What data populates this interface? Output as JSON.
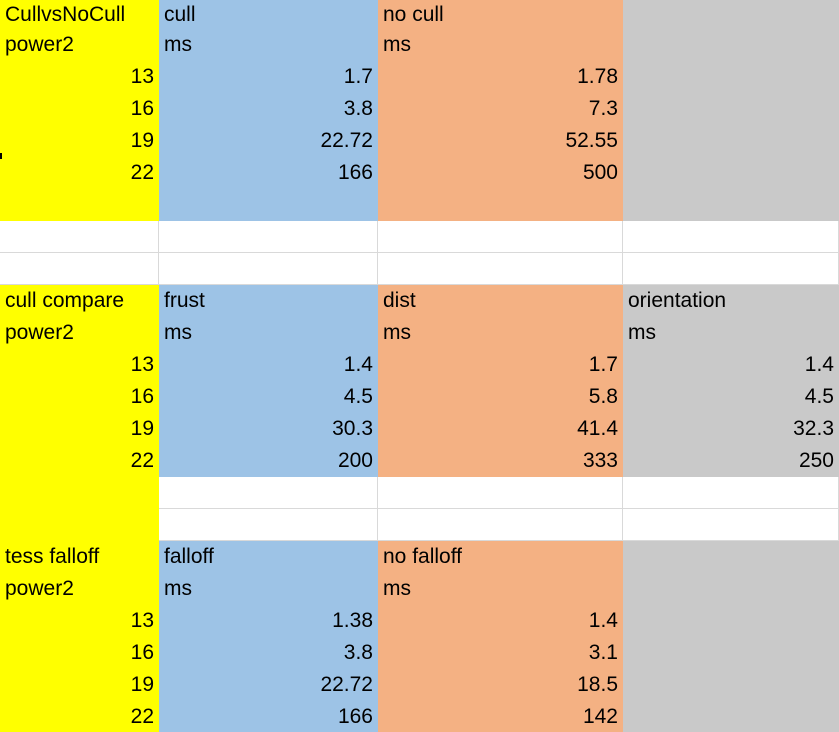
{
  "colors": {
    "yellow": "#ffff00",
    "blue": "#9dc3e6",
    "orange": "#f4b183",
    "gray": "#c9c9c9",
    "white": "#ffffff",
    "gridline": "#d9d9d9"
  },
  "sheet": {
    "rows": [
      {
        "cells": [
          {
            "text": "CullvsNoCull",
            "align": "left",
            "fill": "yellow"
          },
          {
            "text": "cull",
            "align": "left",
            "fill": "blue"
          },
          {
            "text": "no cull",
            "align": "left",
            "fill": "orange"
          },
          {
            "text": "",
            "align": "left",
            "fill": "gray"
          }
        ]
      },
      {
        "cells": [
          {
            "text": "power2",
            "align": "left",
            "fill": "yellow"
          },
          {
            "text": "ms",
            "align": "left",
            "fill": "blue"
          },
          {
            "text": "ms",
            "align": "left",
            "fill": "orange"
          },
          {
            "text": "",
            "align": "left",
            "fill": "gray"
          }
        ]
      },
      {
        "cells": [
          {
            "text": "13",
            "align": "right",
            "fill": "yellow"
          },
          {
            "text": "1.7",
            "align": "right",
            "fill": "blue"
          },
          {
            "text": "1.78",
            "align": "right",
            "fill": "orange"
          },
          {
            "text": "",
            "align": "right",
            "fill": "gray"
          }
        ]
      },
      {
        "cells": [
          {
            "text": "16",
            "align": "right",
            "fill": "yellow"
          },
          {
            "text": "3.8",
            "align": "right",
            "fill": "blue"
          },
          {
            "text": "7.3",
            "align": "right",
            "fill": "orange"
          },
          {
            "text": "",
            "align": "right",
            "fill": "gray"
          }
        ]
      },
      {
        "cells": [
          {
            "text": "19",
            "align": "right",
            "fill": "yellow"
          },
          {
            "text": "22.72",
            "align": "right",
            "fill": "blue"
          },
          {
            "text": "52.55",
            "align": "right",
            "fill": "orange"
          },
          {
            "text": "",
            "align": "right",
            "fill": "gray"
          }
        ]
      },
      {
        "cells": [
          {
            "text": "22",
            "align": "right",
            "fill": "yellow"
          },
          {
            "text": "166",
            "align": "right",
            "fill": "blue"
          },
          {
            "text": "500",
            "align": "right",
            "fill": "orange"
          },
          {
            "text": "",
            "align": "right",
            "fill": "gray"
          }
        ]
      },
      {
        "cells": [
          {
            "text": "",
            "align": "left",
            "fill": "yellow"
          },
          {
            "text": "",
            "align": "left",
            "fill": "blue"
          },
          {
            "text": "",
            "align": "left",
            "fill": "orange"
          },
          {
            "text": "",
            "align": "left",
            "fill": "gray"
          }
        ]
      },
      {
        "cells": [
          {
            "text": "",
            "align": "left",
            "fill": "white"
          },
          {
            "text": "",
            "align": "left",
            "fill": "white"
          },
          {
            "text": "",
            "align": "left",
            "fill": "white"
          },
          {
            "text": "",
            "align": "left",
            "fill": "white"
          }
        ]
      },
      {
        "cells": [
          {
            "text": "",
            "align": "left",
            "fill": "white"
          },
          {
            "text": "",
            "align": "left",
            "fill": "white"
          },
          {
            "text": "",
            "align": "left",
            "fill": "white"
          },
          {
            "text": "",
            "align": "left",
            "fill": "white"
          }
        ]
      },
      {
        "cells": [
          {
            "text": "cull compare",
            "align": "left",
            "fill": "yellow"
          },
          {
            "text": "frust",
            "align": "left",
            "fill": "blue"
          },
          {
            "text": "dist",
            "align": "left",
            "fill": "orange"
          },
          {
            "text": "orientation",
            "align": "left",
            "fill": "gray"
          }
        ]
      },
      {
        "cells": [
          {
            "text": "power2",
            "align": "left",
            "fill": "yellow"
          },
          {
            "text": "ms",
            "align": "left",
            "fill": "blue"
          },
          {
            "text": "ms",
            "align": "left",
            "fill": "orange"
          },
          {
            "text": "ms",
            "align": "left",
            "fill": "gray"
          }
        ]
      },
      {
        "cells": [
          {
            "text": "13",
            "align": "right",
            "fill": "yellow"
          },
          {
            "text": "1.4",
            "align": "right",
            "fill": "blue"
          },
          {
            "text": "1.7",
            "align": "right",
            "fill": "orange"
          },
          {
            "text": "1.4",
            "align": "right",
            "fill": "gray"
          }
        ]
      },
      {
        "cells": [
          {
            "text": "16",
            "align": "right",
            "fill": "yellow"
          },
          {
            "text": "4.5",
            "align": "right",
            "fill": "blue"
          },
          {
            "text": "5.8",
            "align": "right",
            "fill": "orange"
          },
          {
            "text": "4.5",
            "align": "right",
            "fill": "gray"
          }
        ]
      },
      {
        "cells": [
          {
            "text": "19",
            "align": "right",
            "fill": "yellow"
          },
          {
            "text": "30.3",
            "align": "right",
            "fill": "blue"
          },
          {
            "text": "41.4",
            "align": "right",
            "fill": "orange"
          },
          {
            "text": "32.3",
            "align": "right",
            "fill": "gray"
          }
        ]
      },
      {
        "cells": [
          {
            "text": "22",
            "align": "right",
            "fill": "yellow"
          },
          {
            "text": "200",
            "align": "right",
            "fill": "blue"
          },
          {
            "text": "333",
            "align": "right",
            "fill": "orange"
          },
          {
            "text": "250",
            "align": "right",
            "fill": "gray"
          }
        ]
      },
      {
        "cells": [
          {
            "text": "",
            "align": "left",
            "fill": "yellow"
          },
          {
            "text": "",
            "align": "left",
            "fill": "white"
          },
          {
            "text": "",
            "align": "left",
            "fill": "white"
          },
          {
            "text": "",
            "align": "left",
            "fill": "white"
          }
        ]
      },
      {
        "cells": [
          {
            "text": "",
            "align": "left",
            "fill": "yellow"
          },
          {
            "text": "",
            "align": "left",
            "fill": "white"
          },
          {
            "text": "",
            "align": "left",
            "fill": "white"
          },
          {
            "text": "",
            "align": "left",
            "fill": "white"
          }
        ]
      },
      {
        "cells": [
          {
            "text": "tess falloff",
            "align": "left",
            "fill": "yellow"
          },
          {
            "text": "falloff",
            "align": "left",
            "fill": "blue"
          },
          {
            "text": "no falloff",
            "align": "left",
            "fill": "orange"
          },
          {
            "text": "",
            "align": "left",
            "fill": "gray"
          }
        ]
      },
      {
        "cells": [
          {
            "text": "power2",
            "align": "left",
            "fill": "yellow"
          },
          {
            "text": "ms",
            "align": "left",
            "fill": "blue"
          },
          {
            "text": "ms",
            "align": "left",
            "fill": "orange"
          },
          {
            "text": "",
            "align": "left",
            "fill": "gray"
          }
        ]
      },
      {
        "cells": [
          {
            "text": "13",
            "align": "right",
            "fill": "yellow"
          },
          {
            "text": "1.38",
            "align": "right",
            "fill": "blue"
          },
          {
            "text": "1.4",
            "align": "right",
            "fill": "orange"
          },
          {
            "text": "",
            "align": "right",
            "fill": "gray"
          }
        ]
      },
      {
        "cells": [
          {
            "text": "16",
            "align": "right",
            "fill": "yellow"
          },
          {
            "text": "3.8",
            "align": "right",
            "fill": "blue"
          },
          {
            "text": "3.1",
            "align": "right",
            "fill": "orange"
          },
          {
            "text": "",
            "align": "right",
            "fill": "gray"
          }
        ]
      },
      {
        "cells": [
          {
            "text": "19",
            "align": "right",
            "fill": "yellow"
          },
          {
            "text": "22.72",
            "align": "right",
            "fill": "blue"
          },
          {
            "text": "18.5",
            "align": "right",
            "fill": "orange"
          },
          {
            "text": "",
            "align": "right",
            "fill": "gray"
          }
        ]
      },
      {
        "cells": [
          {
            "text": "22",
            "align": "right",
            "fill": "yellow"
          },
          {
            "text": "166",
            "align": "right",
            "fill": "blue"
          },
          {
            "text": "142",
            "align": "right",
            "fill": "orange"
          },
          {
            "text": "",
            "align": "right",
            "fill": "gray"
          }
        ]
      }
    ]
  }
}
